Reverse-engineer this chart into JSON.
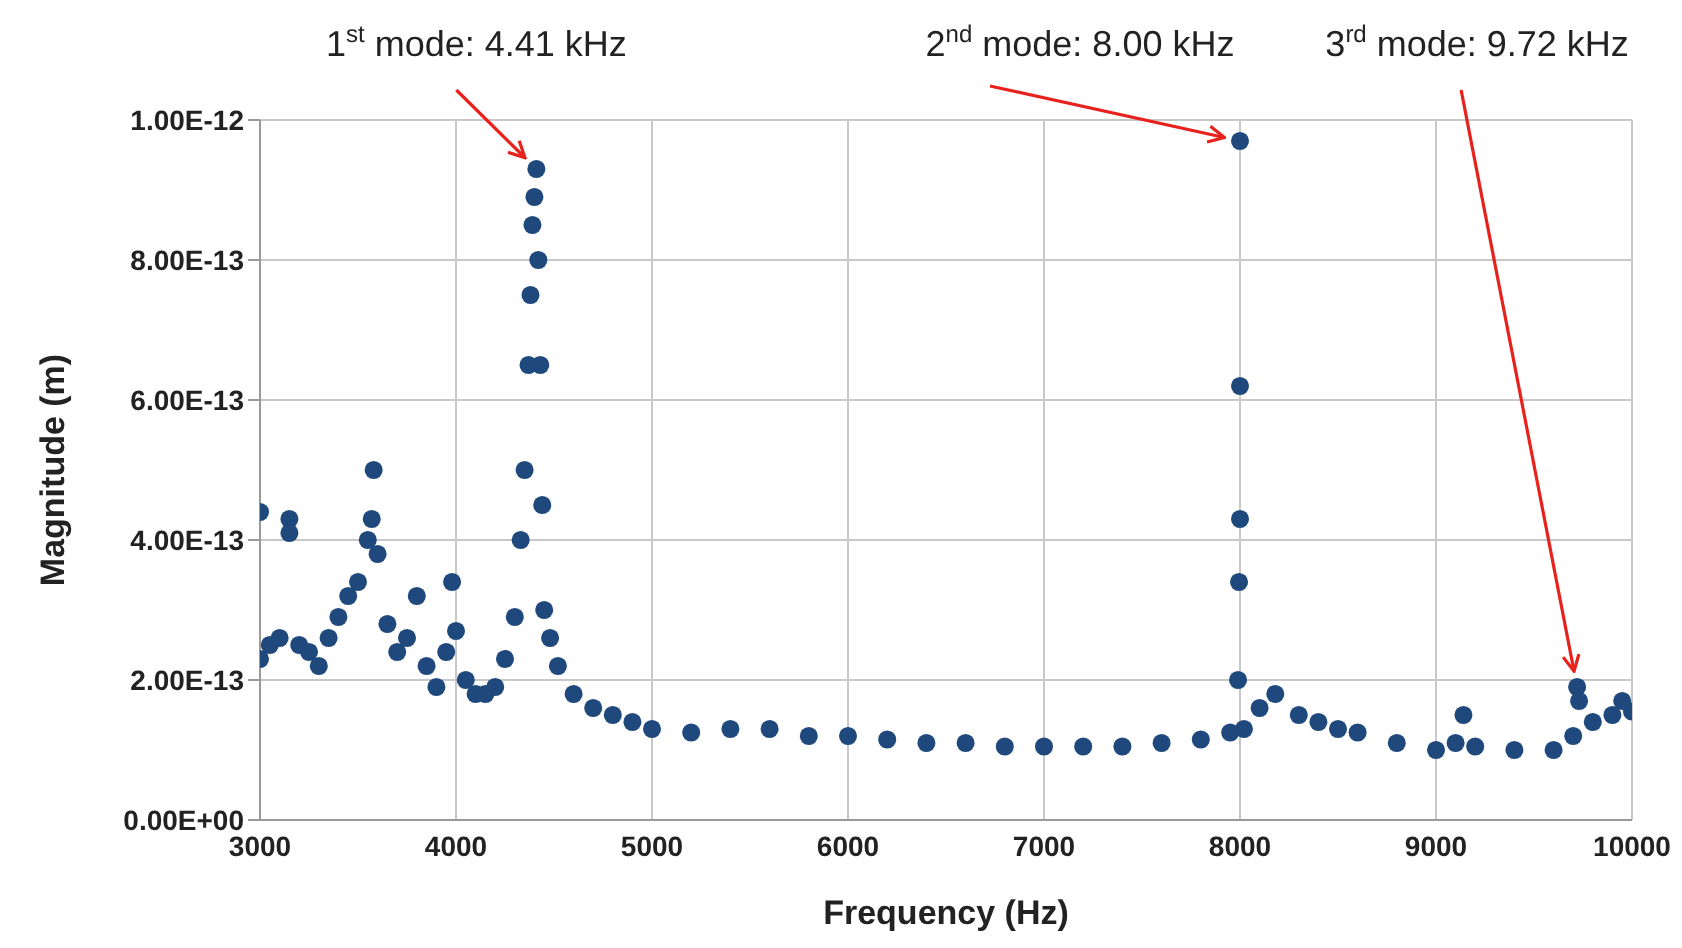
{
  "chart_data": {
    "type": "scatter",
    "xlabel": "Frequency (Hz)",
    "ylabel": "Magnitude (m)",
    "color": "#1f497d",
    "marker": "circle",
    "grid": true,
    "legend": false,
    "xlim": [
      3000,
      10000
    ],
    "xticks": [
      3000,
      4000,
      5000,
      6000,
      7000,
      8000,
      9000,
      10000
    ],
    "ylim": [
      0,
      1e-12
    ],
    "yticks": [
      {
        "value": 0,
        "label": "0.00E+00"
      },
      {
        "value": 2e-13,
        "label": "2.00E-13"
      },
      {
        "value": 4e-13,
        "label": "4.00E-13"
      },
      {
        "value": 6e-13,
        "label": "6.00E-13"
      },
      {
        "value": 8e-13,
        "label": "8.00E-13"
      },
      {
        "value": 1e-12,
        "label": "1.00E-12"
      }
    ],
    "x": [
      3000,
      3000,
      3050,
      3100,
      3150,
      3150,
      3200,
      3250,
      3300,
      3350,
      3400,
      3450,
      3500,
      3550,
      3570,
      3580,
      3600,
      3650,
      3700,
      3750,
      3800,
      3850,
      3900,
      3950,
      3980,
      4000,
      4050,
      4100,
      4150,
      4200,
      4250,
      4300,
      4330,
      4350,
      4370,
      4380,
      4390,
      4400,
      4410,
      4420,
      4430,
      4440,
      4450,
      4480,
      4520,
      4600,
      4700,
      4800,
      4900,
      5000,
      5200,
      5400,
      5600,
      5800,
      6000,
      6200,
      6400,
      6600,
      6800,
      7000,
      7200,
      7400,
      7600,
      7800,
      7950,
      7990,
      7995,
      8000,
      8000,
      8000,
      8020,
      8100,
      8180,
      8300,
      8400,
      8500,
      8600,
      8800,
      9000,
      9100,
      9140,
      9200,
      9400,
      9600,
      9700,
      9720,
      9730,
      9800,
      9900,
      9950,
      10000
    ],
    "values": [
      2.3e-13,
      4.4e-13,
      2.5e-13,
      2.6e-13,
      4.3e-13,
      4.1e-13,
      2.5e-13,
      2.4e-13,
      2.2e-13,
      2.6e-13,
      2.9e-13,
      3.2e-13,
      3.4e-13,
      4e-13,
      4.3e-13,
      5e-13,
      3.8e-13,
      2.8e-13,
      2.4e-13,
      2.6e-13,
      3.2e-13,
      2.2e-13,
      1.9e-13,
      2.4e-13,
      3.4e-13,
      2.7e-13,
      2e-13,
      1.8e-13,
      1.8e-13,
      1.9e-13,
      2.3e-13,
      2.9e-13,
      4e-13,
      5e-13,
      6.5e-13,
      7.5e-13,
      8.5e-13,
      8.9e-13,
      9.3e-13,
      8e-13,
      6.5e-13,
      4.5e-13,
      3e-13,
      2.6e-13,
      2.2e-13,
      1.8e-13,
      1.6e-13,
      1.5e-13,
      1.4e-13,
      1.3e-13,
      1.25e-13,
      1.3e-13,
      1.3e-13,
      1.2e-13,
      1.2e-13,
      1.15e-13,
      1.1e-13,
      1.1e-13,
      1.05e-13,
      1.05e-13,
      1.05e-13,
      1.05e-13,
      1.1e-13,
      1.15e-13,
      1.25e-13,
      2e-13,
      3.4e-13,
      4.3e-13,
      6.2e-13,
      9.7e-13,
      1.3e-13,
      1.6e-13,
      1.8e-13,
      1.5e-13,
      1.4e-13,
      1.3e-13,
      1.25e-13,
      1.1e-13,
      1e-13,
      1.1e-13,
      1.5e-13,
      1.05e-13,
      1e-13,
      1e-13,
      1.2e-13,
      1.9e-13,
      1.7e-13,
      1.4e-13,
      1.5e-13,
      1.7e-13,
      1.55e-13
    ],
    "annotations": [
      {
        "text": "1$^{st}$ mode: 4.41 kHz",
        "x": 4410,
        "y": 9.3e-13
      },
      {
        "text": "2$^{nd}$ mode: 8.00 kHz",
        "x": 8000,
        "y": 9.7e-13
      },
      {
        "text": "3$^{rd}$ mode: 9.72 kHz",
        "x": 9720,
        "y": 1.9e-13
      }
    ]
  }
}
